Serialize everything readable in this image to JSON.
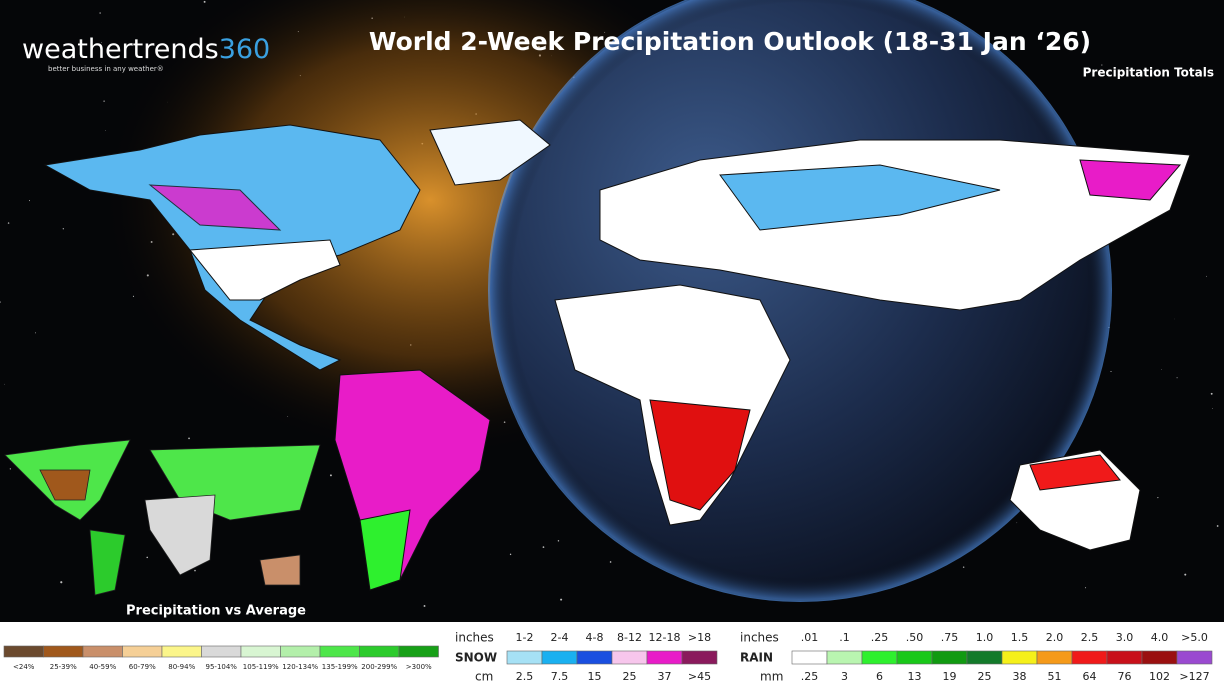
{
  "header": {
    "logo_word": "weathertrends",
    "logo_number": "360",
    "tagline": "better business in any weather®",
    "title": "World 2-Week Precipitation Outlook (18-31 Jan ‘26)",
    "subtitle": "Precipitation Totals"
  },
  "inset": {
    "label": "Precipitation vs Average"
  },
  "anomaly_legend": {
    "items": [
      {
        "label": "<24%",
        "color": "#6b4a2e"
      },
      {
        "label": "25-39%",
        "color": "#a0581c"
      },
      {
        "label": "40-59%",
        "color": "#c98f6a"
      },
      {
        "label": "60-79%",
        "color": "#f5cf96"
      },
      {
        "label": "80-94%",
        "color": "#fbf58a"
      },
      {
        "label": "95-104%",
        "color": "#d9d9d9"
      },
      {
        "label": "105-119%",
        "color": "#d8f5d2"
      },
      {
        "label": "120-134%",
        "color": "#b3efaa"
      },
      {
        "label": "135-199%",
        "color": "#4ee64a"
      },
      {
        "label": "200-299%",
        "color": "#2ccb2c"
      },
      {
        "label": ">300%",
        "color": "#17a017"
      }
    ]
  },
  "snow_legend": {
    "name": "SNOW",
    "top_unit": "inches",
    "bottom_unit": "cm",
    "items": [
      {
        "inches": "1-2",
        "cm": "2.5",
        "color": "#a6e1f5"
      },
      {
        "inches": "2-4",
        "cm": "7.5",
        "color": "#1ab0f0"
      },
      {
        "inches": "4-8",
        "cm": "15",
        "color": "#1a4fe0"
      },
      {
        "inches": "8-12",
        "cm": "25",
        "color": "#f7c6ec"
      },
      {
        "inches": "12-18",
        "cm": "37",
        "color": "#e81cc8"
      },
      {
        "inches": ">18",
        "cm": ">45",
        "color": "#8a1a5c"
      }
    ]
  },
  "rain_legend": {
    "name": "RAIN",
    "top_unit": "inches",
    "bottom_unit": "mm",
    "items": [
      {
        "inches": ".01",
        "mm": ".25",
        "color": "#ffffff"
      },
      {
        "inches": ".1",
        "mm": "3",
        "color": "#b9f5b0"
      },
      {
        "inches": ".25",
        "mm": "6",
        "color": "#2ef02e"
      },
      {
        "inches": ".50",
        "mm": "13",
        "color": "#19c819"
      },
      {
        "inches": ".75",
        "mm": "19",
        "color": "#119a11"
      },
      {
        "inches": "1.0",
        "mm": "25",
        "color": "#137a2a"
      },
      {
        "inches": "1.5",
        "mm": "38",
        "color": "#f5f01a"
      },
      {
        "inches": "2.0",
        "mm": "51",
        "color": "#f59a1a"
      },
      {
        "inches": "2.5",
        "mm": "64",
        "color": "#f01a1a"
      },
      {
        "inches": "3.0",
        "mm": "76",
        "color": "#c8101a"
      },
      {
        "inches": "4.0",
        "mm": "102",
        "color": "#9a1010"
      },
      {
        "inches": ">5.0",
        "mm": ">127",
        "color": "#9a4ad0"
      }
    ]
  }
}
